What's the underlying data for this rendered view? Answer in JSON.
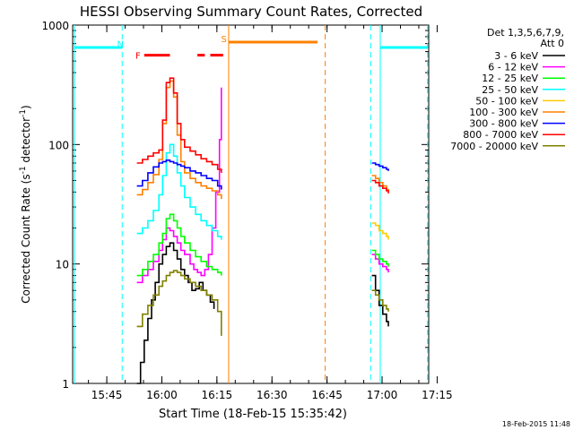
{
  "chart_data": {
    "type": "line",
    "title": "HESSI Observing Summary Count Rates, Corrected",
    "xlabel": "Start Time (18-Feb-15 15:35:42)",
    "ylabel": "Corrected Count Rate (s⁻¹ detector⁻¹)",
    "ylabel_main": "Corrected Count Rate (s",
    "ylabel_sup1": "-1",
    "ylabel_mid": " detector",
    "ylabel_sup2": "-1",
    "ylabel_end": ")",
    "yscale": "log",
    "ylim": [
      1,
      1000
    ],
    "xlim_minutes": [
      0,
      97
    ],
    "x_unit": "minutes after 15:35:42",
    "x_ticks": [
      {
        "label": "15:45",
        "x": 9.3
      },
      {
        "label": "16:00",
        "x": 24.3
      },
      {
        "label": "16:15",
        "x": 39.3
      },
      {
        "label": "16:30",
        "x": 54.3
      },
      {
        "label": "16:45",
        "x": 69.3
      },
      {
        "label": "17:00",
        "x": 84.3
      },
      {
        "label": "17:15",
        "x": 99.3
      }
    ],
    "y_ticks": [
      {
        "label": "1",
        "y": 1
      },
      {
        "label": "10",
        "y": 10
      },
      {
        "label": "100",
        "y": 100
      },
      {
        "label": "1000",
        "y": 1000
      }
    ],
    "legend": {
      "title_line1": "Det 1,3,5,6,7,9,",
      "title_line2": "Att 0",
      "placement": "right"
    },
    "footer_timestamp": "18-Feb-2015 11:48",
    "series": [
      {
        "name": "3 - 6 keV",
        "color": "#000000",
        "segments": [
          {
            "x": [
              17.5,
              18.5,
              19.5,
              20.5,
              21.5,
              22.5,
              23.5,
              24.5,
              25.5,
              26.5,
              27.5,
              28.5,
              29.5,
              30.5,
              31.5,
              32.5,
              33.5,
              34.5,
              35.5,
              36.5,
              37.5,
              38.5
            ],
            "y": [
              1,
              1.5,
              2.3,
              3.5,
              5,
              7,
              10,
              12,
              14,
              15,
              13,
              11,
              9,
              8,
              7,
              6,
              6.2,
              7,
              6,
              5.5,
              4.8,
              4.2
            ]
          },
          {
            "x": [
              81.5,
              82.5,
              83.5,
              84.5,
              85.5,
              86
            ],
            "y": [
              8,
              6,
              4.5,
              3.8,
              3.3,
              3.0
            ]
          }
        ]
      },
      {
        "name": "6 - 12 keV",
        "color": "#ff00ff",
        "segments": [
          {
            "x": [
              17.5,
              19,
              20.5,
              22,
              23.5,
              24.5,
              25.5,
              26.5,
              27.5,
              28.5,
              29.5,
              30.5,
              32,
              33,
              34,
              35,
              36,
              37,
              38,
              39,
              40,
              40.5
            ],
            "y": [
              7,
              8,
              9,
              10.5,
              13,
              16,
              20,
              19,
              17,
              15,
              13,
              12,
              10,
              9,
              8.5,
              8,
              9,
              12,
              20,
              40,
              110,
              300
            ]
          },
          {
            "x": [
              81.5,
              82.5,
              83.5,
              84.5,
              85.5,
              86
            ],
            "y": [
              12,
              11,
              10,
              9.5,
              9,
              8.5
            ]
          }
        ]
      },
      {
        "name": "12 - 25 keV",
        "color": "#00ff00",
        "segments": [
          {
            "x": [
              17.5,
              19,
              20.5,
              22,
              23.5,
              24.5,
              25.5,
              26.5,
              27.5,
              28.5,
              29.5,
              30.5,
              32,
              33.5,
              35,
              36.5,
              38,
              39.5,
              40.5
            ],
            "y": [
              8,
              9,
              10.5,
              12,
              15,
              18,
              24,
              26,
              23,
              20,
              17,
              15,
              13,
              11.5,
              10.5,
              9.5,
              9,
              8.5,
              8
            ]
          },
          {
            "x": [
              81.5,
              82.5,
              83.5,
              84.5,
              85.5,
              86
            ],
            "y": [
              13,
              12,
              11,
              10.5,
              10,
              9.5
            ]
          }
        ]
      },
      {
        "name": "25 - 50 keV",
        "color": "#00ffff",
        "segments": [
          {
            "x": [
              17.5,
              19,
              20.5,
              22,
              23.5,
              24.5,
              25.5,
              26.5,
              27.5,
              28.5,
              29.5,
              30.5,
              32,
              33.5,
              35,
              36.5,
              38,
              39.5,
              40.5
            ],
            "y": [
              18,
              20,
              23,
              28,
              38,
              55,
              85,
              100,
              80,
              58,
              45,
              36,
              30,
              26,
              23,
              21,
              19,
              17,
              16
            ]
          }
        ]
      },
      {
        "name": "50 - 100 keV",
        "color": "#ffcc00",
        "segments": [
          {
            "x": [
              81.5,
              82.5,
              83.5,
              84.5,
              85.5,
              86
            ],
            "y": [
              22,
              21,
              19,
              18,
              17,
              16
            ]
          }
        ]
      },
      {
        "name": "100 - 300 keV",
        "color": "#ff8000",
        "segments": [
          {
            "x": [
              17.5,
              19,
              20.5,
              22,
              23.5,
              24.5,
              25.5,
              26.5,
              27.5,
              28.5,
              29.5,
              30.5,
              32,
              33.5,
              35,
              36.5,
              38,
              39.5,
              40.5
            ],
            "y": [
              38,
              42,
              48,
              56,
              75,
              150,
              300,
              340,
              250,
              120,
              72,
              58,
              52,
              48,
              45,
              43,
              41,
              38,
              35
            ]
          },
          {
            "x": [
              81.5,
              82.5,
              83.5,
              84.5,
              85.5,
              86
            ],
            "y": [
              55,
              52,
              48,
              45,
              42,
              40
            ]
          }
        ]
      },
      {
        "name": "300 - 800 keV",
        "color": "#0000ff",
        "segments": [
          {
            "x": [
              17.5,
              19,
              20.5,
              22,
              23.5,
              24.5,
              25.5,
              26.5,
              27.5,
              28.5,
              29.5,
              30.5,
              32,
              33.5,
              35,
              36.5,
              38,
              39.5,
              40.5
            ],
            "y": [
              45,
              50,
              58,
              65,
              70,
              72,
              74,
              72,
              70,
              68,
              66,
              64,
              60,
              58,
              55,
              52,
              50,
              45,
              42
            ]
          },
          {
            "x": [
              81.5,
              82.5,
              83.5,
              84.5,
              85.5,
              86
            ],
            "y": [
              70,
              68,
              66,
              64,
              62,
              60
            ]
          }
        ]
      },
      {
        "name": "800 - 7000 keV",
        "color": "#ff0000",
        "segments": [
          {
            "x": [
              17.5,
              19,
              20.5,
              22,
              23.5,
              24.5,
              25.5,
              26.5,
              27.5,
              28.5,
              29.5,
              30.5,
              32,
              33.5,
              35,
              36.5,
              38,
              39.5,
              40.5
            ],
            "y": [
              70,
              75,
              80,
              85,
              90,
              160,
              330,
              360,
              270,
              150,
              110,
              95,
              88,
              82,
              76,
              72,
              68,
              62,
              58
            ]
          },
          {
            "x": [
              81.5,
              82.5,
              83.5,
              84.5,
              85.5,
              86
            ],
            "y": [
              50,
              48,
              45,
              43,
              41,
              39
            ]
          }
        ]
      },
      {
        "name": "7000 - 20000 keV",
        "color": "#808000",
        "segments": [
          {
            "x": [
              17.5,
              19,
              20.5,
              22,
              23.5,
              24.5,
              25.5,
              26.5,
              27.5,
              28.5,
              29.5,
              30.5,
              32,
              33.5,
              35,
              36.5,
              38,
              39.5,
              40.5
            ],
            "y": [
              3,
              3.8,
              4.5,
              5.5,
              6.5,
              7.2,
              8,
              8.5,
              8.8,
              8.5,
              8,
              7.5,
              7,
              6.5,
              6,
              5.5,
              5,
              4,
              2.5
            ]
          },
          {
            "x": [
              81.5,
              82.5,
              83.5,
              84.5,
              85.5,
              86
            ],
            "y": [
              6,
              5.5,
              5,
              4.5,
              4.2,
              4
            ]
          }
        ]
      }
    ],
    "attenuator_bars": [
      {
        "color": "#00ffff",
        "x0": 0.5,
        "x1": 13.5,
        "y": 650
      },
      {
        "color": "#00ffff",
        "x0": 83.8,
        "x1": 96.7,
        "y": 650
      },
      {
        "color": "#ff8000",
        "x0": 42.5,
        "x1": 66.7,
        "y": 720
      },
      {
        "color": "#ff0000",
        "x0": 19.5,
        "x1": 26.5,
        "y": 560
      },
      {
        "color": "#ff0000",
        "x0": 34.0,
        "x1": 36.0,
        "y": 560
      },
      {
        "color": "#ff0000",
        "x0": 37.5,
        "x1": 41.0,
        "y": 560
      }
    ],
    "vertical_lines": [
      {
        "color": "#00ffff",
        "x": 0.5,
        "style": "solid"
      },
      {
        "color": "#00ffff",
        "x": 13.5,
        "style": "dashed"
      },
      {
        "color": "#ff8000",
        "x": 42.5,
        "style": "solid"
      },
      {
        "color": "#ff8000",
        "x": 68.8,
        "style": "dashed"
      },
      {
        "color": "#00ffff",
        "x": 81.2,
        "style": "dashed"
      },
      {
        "color": "#00ffff",
        "x": 83.8,
        "style": "solid"
      },
      {
        "color": "#00ffff",
        "x": 96.7,
        "style": "dashed"
      }
    ],
    "markers": [
      {
        "text": "N",
        "color": "#00ffff",
        "x": 13.0,
        "y": 700
      },
      {
        "text": "F",
        "color": "#ff0000",
        "x": 17.8,
        "y": 560
      },
      {
        "text": "S",
        "color": "#ff8000",
        "x": 41.2,
        "y": 770
      }
    ]
  }
}
